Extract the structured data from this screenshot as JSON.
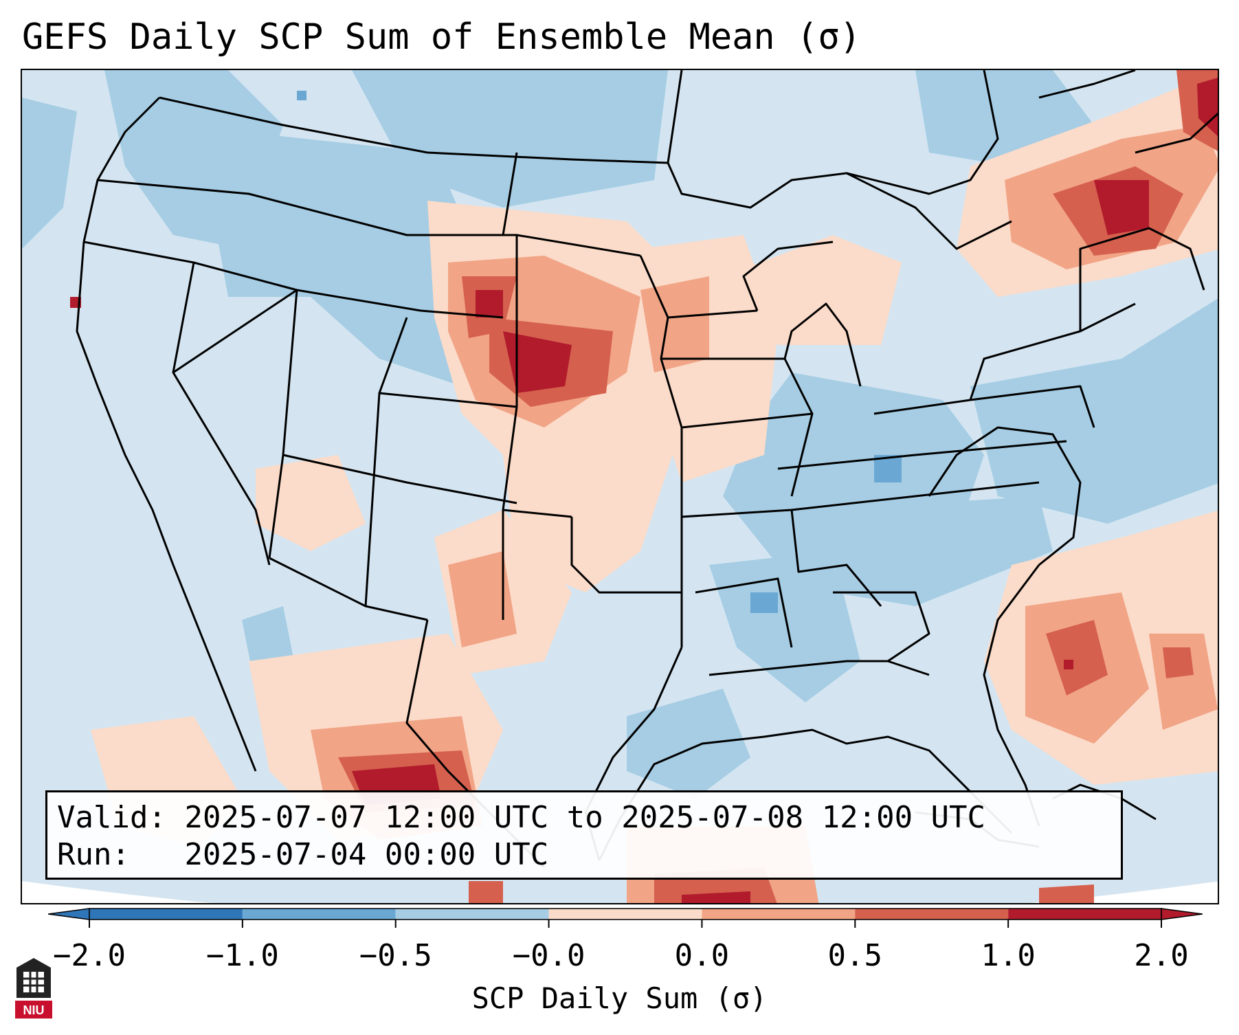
{
  "title": "GEFS Daily SCP Sum of Ensemble Mean (σ)",
  "info": {
    "valid_label": "Valid:",
    "valid_value": "2025-07-07 12:00 UTC to 2025-07-08 12:00 UTC",
    "run_label": "Run:",
    "run_value": "2025-07-04 00:00 UTC"
  },
  "colorbar": {
    "label": "SCP Daily Sum (σ)",
    "ticks": [
      "−2.0",
      "−1.0",
      "−0.5",
      "−0.0",
      "0.0",
      "0.5",
      "1.0",
      "2.0"
    ],
    "colors": [
      "#2f76b8",
      "#6aa8d3",
      "#a6cde4",
      "#d4e5f1",
      "#fbdbc9",
      "#f1a486",
      "#d5604e",
      "#b11b2c"
    ]
  },
  "palette": {
    "ocean_background": "#d4e5f1",
    "borders": "#000000"
  },
  "logo": {
    "text": "NIU",
    "color": "#c8102e"
  }
}
